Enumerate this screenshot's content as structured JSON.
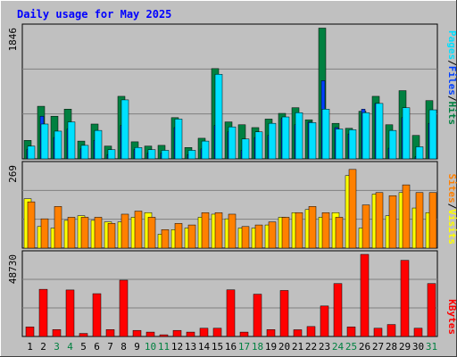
{
  "title": "Daily usage for May 2025",
  "colors": {
    "background": "#c0c0c0",
    "title": "#0000ff",
    "hits": "#008040",
    "files": "#0040ff",
    "pages": "#00e0ff",
    "visits": "#ff8000",
    "sites": "#ffff00",
    "kbytes": "#ff0000",
    "weekend_day": "#008040",
    "weekday": "#000000"
  },
  "labels": {
    "pages": "Pages",
    "files": "Files",
    "hits": "Hits",
    "sites": "Sites",
    "visits": "Visits",
    "kbytes": "KBytes",
    "sep": "/"
  },
  "chart_data": [
    {
      "type": "bar",
      "panel": "top",
      "ymax_label": "1846",
      "ylim": [
        0,
        1846
      ],
      "categories": [
        "1",
        "2",
        "3",
        "4",
        "5",
        "6",
        "7",
        "8",
        "9",
        "10",
        "11",
        "12",
        "13",
        "14",
        "15",
        "16",
        "17",
        "18",
        "19",
        "20",
        "21",
        "22",
        "23",
        "24",
        "25",
        "26",
        "27",
        "28",
        "29",
        "30",
        "31"
      ],
      "weekend_days": [
        "3",
        "4",
        "10",
        "11",
        "17",
        "18",
        "24",
        "25",
        "31"
      ],
      "series": [
        {
          "name": "Hits",
          "values": [
            260,
            740,
            600,
            700,
            250,
            490,
            180,
            880,
            240,
            180,
            190,
            580,
            160,
            290,
            1270,
            520,
            480,
            440,
            560,
            640,
            720,
            550,
            1840,
            500,
            430,
            670,
            880,
            480,
            960,
            330,
            820
          ]
        },
        {
          "name": "Files",
          "values": [
            130,
            600,
            300,
            420,
            140,
            260,
            60,
            470,
            130,
            80,
            80,
            440,
            60,
            140,
            470,
            380,
            120,
            300,
            330,
            570,
            480,
            520,
            1100,
            440,
            350,
            700,
            780,
            150,
            580,
            30,
            500
          ]
        },
        {
          "name": "Pages",
          "values": [
            180,
            490,
            390,
            520,
            190,
            400,
            130,
            830,
            160,
            130,
            120,
            560,
            120,
            250,
            1190,
            450,
            280,
            380,
            500,
            590,
            650,
            510,
            700,
            420,
            410,
            650,
            780,
            400,
            720,
            170,
            690
          ]
        }
      ],
      "legend": "right-vertical"
    },
    {
      "type": "bar",
      "panel": "middle",
      "ymax_label": "269",
      "ylim": [
        0,
        269
      ],
      "categories": [
        "1",
        "2",
        "3",
        "4",
        "5",
        "6",
        "7",
        "8",
        "9",
        "10",
        "11",
        "12",
        "13",
        "14",
        "15",
        "16",
        "17",
        "18",
        "19",
        "20",
        "21",
        "22",
        "23",
        "24",
        "25",
        "26",
        "27",
        "28",
        "29",
        "30",
        "31"
      ],
      "series": [
        {
          "name": "Sites",
          "values": [
            160,
            70,
            65,
            90,
            105,
            90,
            85,
            85,
            100,
            115,
            45,
            60,
            65,
            100,
            110,
            95,
            65,
            65,
            75,
            100,
            115,
            125,
            100,
            115,
            235,
            65,
            175,
            105,
            180,
            130,
            115
          ]
        },
        {
          "name": "Visits",
          "values": [
            150,
            95,
            135,
            100,
            100,
            100,
            80,
            110,
            120,
            100,
            60,
            80,
            75,
            115,
            115,
            110,
            70,
            75,
            85,
            100,
            115,
            135,
            115,
            100,
            255,
            140,
            180,
            170,
            205,
            180,
            180
          ]
        }
      ],
      "legend": "right-vertical"
    },
    {
      "type": "bar",
      "panel": "bottom",
      "ymax_label": "48730",
      "ylim": [
        0,
        48730
      ],
      "categories": [
        "1",
        "2",
        "3",
        "4",
        "5",
        "6",
        "7",
        "8",
        "9",
        "10",
        "11",
        "12",
        "13",
        "14",
        "15",
        "16",
        "17",
        "18",
        "19",
        "20",
        "21",
        "22",
        "23",
        "24",
        "25",
        "26",
        "27",
        "28",
        "29",
        "30",
        "31"
      ],
      "series": [
        {
          "name": "KBytes",
          "values": [
            5700,
            28000,
            4100,
            27600,
            1800,
            25400,
            4100,
            33400,
            3600,
            2600,
            1000,
            3600,
            2600,
            4900,
            4900,
            27700,
            2600,
            25100,
            4100,
            27300,
            4000,
            5900,
            18100,
            31400,
            5700,
            48730,
            4900,
            7100,
            45200,
            4900,
            31400
          ]
        }
      ],
      "legend": "right-vertical"
    }
  ]
}
